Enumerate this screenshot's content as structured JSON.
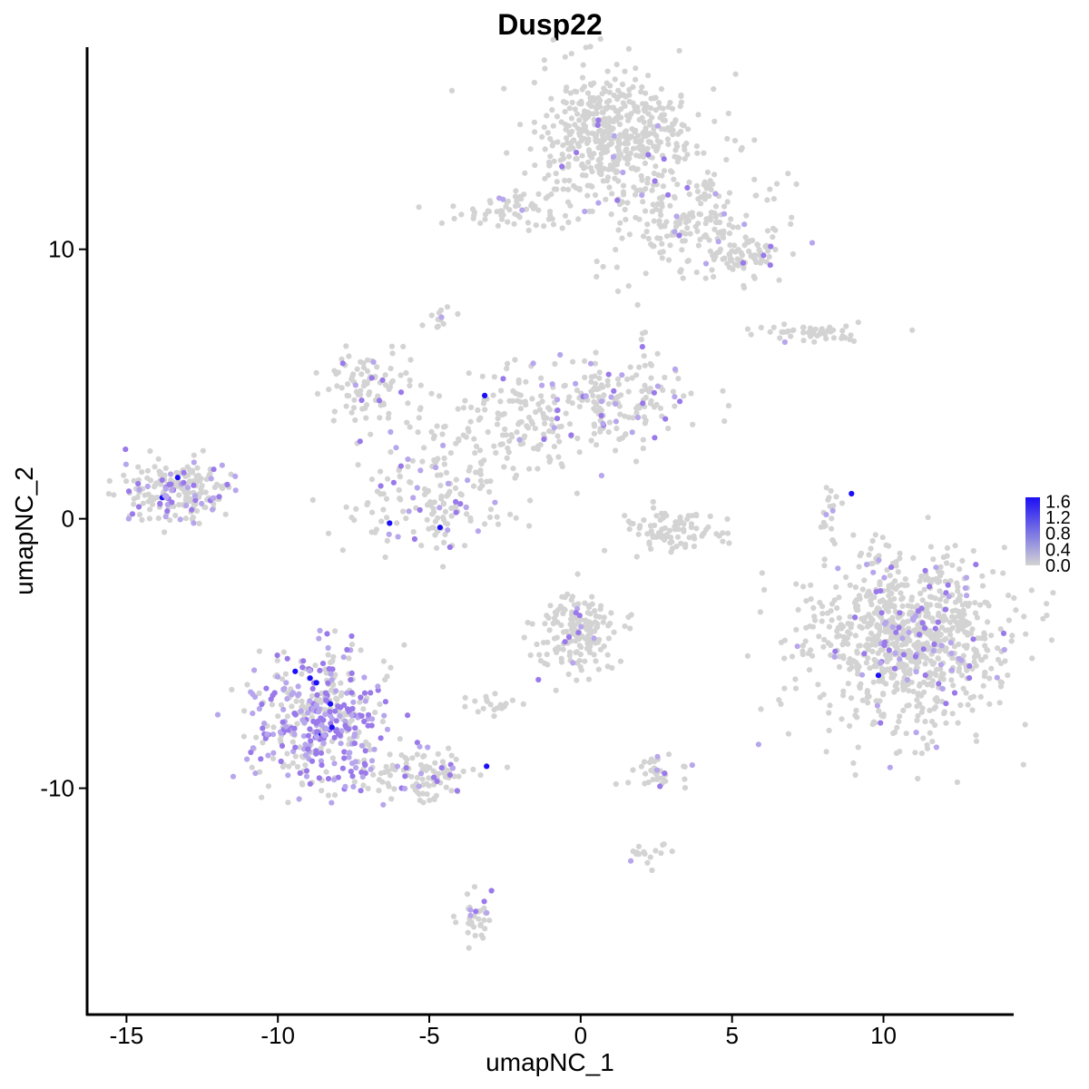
{
  "chart_data": {
    "type": "scatter",
    "title": "Dusp22",
    "xlabel": "umapNC_1",
    "ylabel": "umapNC_2",
    "xlim": [
      -16.3,
      14.3
    ],
    "ylim": [
      -18.4,
      17.5
    ],
    "x_ticks": [
      -15,
      -10,
      -5,
      0,
      5,
      10
    ],
    "x_tick_labels": [
      "-15",
      "-10",
      "-5",
      "0",
      "5",
      "10"
    ],
    "y_ticks": [
      -10,
      0,
      10
    ],
    "y_tick_labels": [
      "-10",
      "0",
      "10"
    ],
    "grid": false,
    "legend": {
      "position": "right",
      "type": "colorbar",
      "range": [
        0.0,
        1.7
      ],
      "ticks": [
        1.6,
        1.2,
        0.8,
        0.4,
        0.0
      ],
      "tick_labels": [
        "1.6",
        "1.2",
        "0.8",
        "0.4",
        "0.0"
      ],
      "low_color": "#d3d3d3",
      "high_color": "#1c0ff5"
    },
    "point_colors": {
      "zero": "#d3d3d3",
      "low": "#b7a6ec",
      "mid": "#9a79ea",
      "high": "#1c0ff5"
    },
    "clusters": [
      {
        "name": "top-right",
        "center": [
          1.2,
          14.2
        ],
        "spread": [
          1.3,
          1.2
        ],
        "n": 520,
        "expr_frac": 0.03
      },
      {
        "name": "top-right-tail",
        "center": [
          3.8,
          11.0
        ],
        "spread": [
          1.6,
          1.1
        ],
        "n": 200,
        "expr_frac": 0.05
      },
      {
        "name": "top-right-end",
        "center": [
          5.5,
          9.7
        ],
        "spread": [
          0.7,
          0.4
        ],
        "n": 60,
        "expr_frac": 0.05
      },
      {
        "name": "top-left-strand",
        "center": [
          -2.0,
          11.5
        ],
        "spread": [
          1.2,
          0.4
        ],
        "n": 70,
        "expr_frac": 0.04
      },
      {
        "name": "mid-left-arm",
        "center": [
          -7.0,
          5.0
        ],
        "spread": [
          0.8,
          0.7
        ],
        "n": 90,
        "expr_frac": 0.15
      },
      {
        "name": "mid-center",
        "center": [
          -2.0,
          3.5
        ],
        "spread": [
          1.6,
          0.9
        ],
        "n": 160,
        "expr_frac": 0.12
      },
      {
        "name": "mid-right-arm",
        "center": [
          1.2,
          4.5
        ],
        "spread": [
          1.4,
          0.9
        ],
        "n": 160,
        "expr_frac": 0.2
      },
      {
        "name": "mid-lower",
        "center": [
          -5.0,
          0.7
        ],
        "spread": [
          1.3,
          1.1
        ],
        "n": 170,
        "expr_frac": 0.18
      },
      {
        "name": "left-cluster",
        "center": [
          -13.2,
          1.0
        ],
        "spread": [
          0.9,
          0.55
        ],
        "n": 210,
        "expr_frac": 0.3
      },
      {
        "name": "arc-cluster",
        "center": [
          3.2,
          -0.4
        ],
        "spread": [
          0.9,
          0.45
        ],
        "n": 90,
        "expr_frac": 0.0
      },
      {
        "name": "right-strand",
        "center": [
          7.7,
          6.9
        ],
        "spread": [
          1.0,
          0.2
        ],
        "n": 50,
        "expr_frac": 0.03
      },
      {
        "name": "right-small",
        "center": [
          8.3,
          0.2
        ],
        "spread": [
          0.2,
          0.7
        ],
        "n": 20,
        "expr_frac": 0.1
      },
      {
        "name": "big-right",
        "center": [
          10.8,
          -4.5
        ],
        "spread": [
          1.6,
          1.5
        ],
        "n": 900,
        "expr_frac": 0.1
      },
      {
        "name": "lower-left",
        "center": [
          -8.6,
          -7.6
        ],
        "spread": [
          1.1,
          1.3
        ],
        "n": 430,
        "expr_frac": 0.55
      },
      {
        "name": "lower-left-tail",
        "center": [
          -5.2,
          -9.5
        ],
        "spread": [
          1.0,
          0.5
        ],
        "n": 110,
        "expr_frac": 0.25
      },
      {
        "name": "lower-center",
        "center": [
          0.0,
          -4.2
        ],
        "spread": [
          0.7,
          0.7
        ],
        "n": 170,
        "expr_frac": 0.07
      },
      {
        "name": "lower-small-a",
        "center": [
          -2.7,
          -6.9
        ],
        "spread": [
          0.4,
          0.2
        ],
        "n": 20,
        "expr_frac": 0.05
      },
      {
        "name": "lower-small-b",
        "center": [
          2.5,
          -9.4
        ],
        "spread": [
          0.5,
          0.3
        ],
        "n": 35,
        "expr_frac": 0.04
      },
      {
        "name": "lower-small-c",
        "center": [
          2.3,
          -12.5
        ],
        "spread": [
          0.4,
          0.2
        ],
        "n": 18,
        "expr_frac": 0.1
      },
      {
        "name": "lower-small-d",
        "center": [
          -3.4,
          -14.9
        ],
        "spread": [
          0.3,
          0.5
        ],
        "n": 35,
        "expr_frac": 0.2
      },
      {
        "name": "mid-top-small",
        "center": [
          -4.7,
          7.4
        ],
        "spread": [
          0.3,
          0.2
        ],
        "n": 12,
        "expr_frac": 0.1
      }
    ]
  }
}
